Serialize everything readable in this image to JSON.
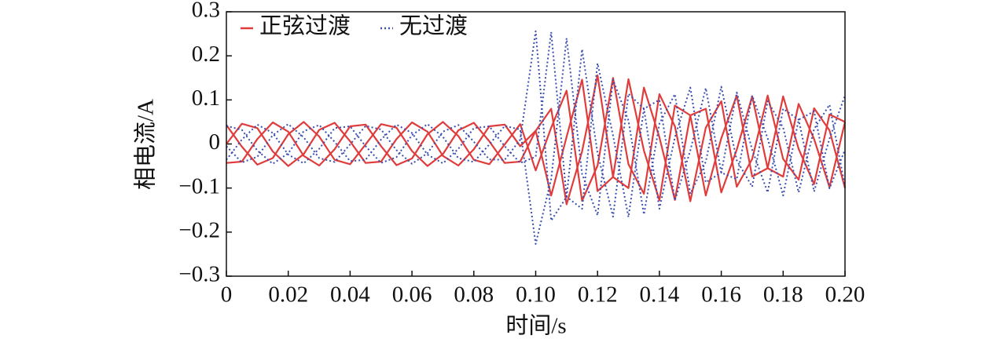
{
  "chart_data": {
    "type": "line",
    "xlabel": "时间/s",
    "ylabel": "相电流/A",
    "xlim": [
      0,
      0.2
    ],
    "ylim": [
      -0.3,
      0.3
    ],
    "xticks": [
      0,
      0.02,
      0.04,
      0.06,
      0.08,
      {
        "value": 0.1,
        "label": "0.10"
      },
      0.12,
      0.14,
      0.16,
      0.18,
      {
        "value": 0.2,
        "label": "0.20"
      }
    ],
    "yticks": [
      {
        "value": -0.3,
        "label": "−0.3"
      },
      {
        "value": -0.2,
        "label": "−0.2"
      },
      {
        "value": -0.1,
        "label": "−0.1"
      },
      0,
      0.1,
      0.2,
      0.3
    ],
    "legend": "upper-left",
    "x": [
      0,
      0.005,
      0.01,
      0.015,
      0.02,
      0.025,
      0.03,
      0.035,
      0.04,
      0.045,
      0.05,
      0.055,
      0.06,
      0.065,
      0.07,
      0.075,
      0.08,
      0.085,
      0.09,
      0.095,
      0.1,
      0.105,
      0.11,
      0.115,
      0.12,
      0.125,
      0.13,
      0.135,
      0.14,
      0.145,
      0.15,
      0.155,
      0.16,
      0.165,
      0.17,
      0.175,
      0.18,
      0.185,
      0.19,
      0.195,
      0.2
    ],
    "series": [
      {
        "name": "正弦过渡",
        "color": "#e03c3c",
        "dash": "none",
        "phases": [
          [
            0,
            0.046,
            0.036,
            -0.017,
            -0.05,
            -0.023,
            0.032,
            0.048,
            0.006,
            -0.043,
            -0.04,
            0.011,
            0.049,
            0.028,
            -0.027,
            -0.049,
            -0.012,
            0.04,
            0.044,
            -0.005,
            0.03,
            0.08,
            -0.137,
            -0.017,
            0.156,
            -0.075,
            -0.1,
            0.128,
            0.015,
            -0.127,
            0.065,
            0.08,
            -0.11,
            -0.013,
            0.108,
            -0.055,
            -0.074,
            0.091,
            0.011,
            -0.098,
            0.05
          ],
          [
            -0.043,
            -0.04,
            0.011,
            0.049,
            0.028,
            -0.027,
            -0.049,
            -0.012,
            0.04,
            0.044,
            -0.005,
            -0.048,
            -0.033,
            0.022,
            0.05,
            0.018,
            -0.036,
            -0.046,
            -0.001,
            0.045,
            -0.06,
            0.037,
            0.121,
            -0.129,
            -0.049,
            0.15,
            -0.046,
            -0.113,
            0.113,
            0.04,
            -0.13,
            0.037,
            0.097,
            -0.097,
            -0.034,
            0.11,
            -0.034,
            -0.081,
            0.081,
            0.031,
            -0.1
          ],
          [
            0.043,
            -0.006,
            -0.047,
            -0.032,
            0.022,
            0.05,
            0.017,
            -0.036,
            -0.046,
            -0.001,
            0.045,
            0.037,
            -0.016,
            -0.05,
            -0.023,
            0.031,
            0.048,
            0.006,
            -0.043,
            -0.04,
            0.03,
            -0.117,
            0.016,
            0.146,
            -0.107,
            -0.075,
            0.147,
            -0.015,
            -0.128,
            0.087,
            0.065,
            -0.117,
            0.013,
            0.11,
            -0.074,
            -0.055,
            0.108,
            -0.011,
            -0.091,
            0.067,
            0.05
          ]
        ]
      },
      {
        "name": "无过渡",
        "color": "#3a4fb0",
        "dash": "2 3",
        "phases": [
          [
            0.041,
            0.032,
            -0.015,
            -0.045,
            -0.021,
            0.029,
            0.043,
            0.005,
            -0.039,
            -0.036,
            0.01,
            0.044,
            0.025,
            -0.024,
            -0.044,
            -0.011,
            0.036,
            0.04,
            -0.005,
            -0.043,
            -0.029,
            0.254,
            -0.12,
            -0.147,
            0.183,
            0.019,
            -0.166,
            0.08,
            0.1,
            -0.128,
            -0.015,
            0.127,
            -0.065,
            -0.08,
            0.11,
            0.013,
            -0.117,
            0.055,
            0.074,
            -0.101,
            -0.013
          ],
          [
            -0.036,
            0.01,
            0.044,
            0.025,
            -0.024,
            -0.044,
            -0.011,
            0.036,
            0.04,
            -0.005,
            -0.043,
            -0.03,
            0.02,
            0.045,
            0.016,
            -0.032,
            -0.041,
            -0.001,
            0.041,
            0.033,
            -0.227,
            -0.08,
            0.24,
            -0.068,
            -0.162,
            0.146,
            0.053,
            -0.16,
            0.046,
            0.113,
            -0.113,
            -0.04,
            0.13,
            -0.037,
            -0.097,
            0.097,
            0.037,
            -0.11,
            0.034,
            0.089,
            -0.097
          ],
          [
            -0.005,
            -0.042,
            -0.029,
            0.02,
            0.045,
            0.015,
            -0.032,
            -0.041,
            -0.001,
            0.041,
            0.033,
            -0.014,
            -0.045,
            -0.021,
            0.028,
            0.043,
            0.005,
            -0.035,
            -0.036,
            0.01,
            0.256,
            -0.174,
            -0.12,
            0.215,
            -0.021,
            -0.165,
            0.114,
            0.08,
            -0.147,
            0.015,
            0.128,
            -0.087,
            -0.065,
            0.117,
            -0.013,
            -0.11,
            0.08,
            0.055,
            -0.108,
            0.012,
            0.11
          ]
        ]
      }
    ]
  }
}
